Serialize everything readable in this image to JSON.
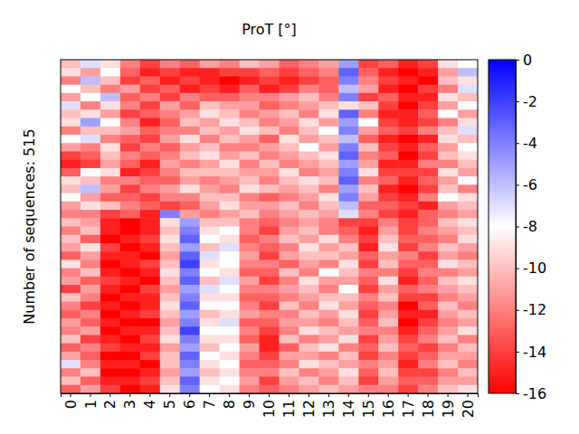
{
  "chart_data": {
    "type": "heatmap",
    "title": "ProT [°]",
    "y_label": "Number of sequences: 515",
    "categories": [
      "0",
      "1",
      "2",
      "3",
      "4",
      "5",
      "6",
      "7",
      "8",
      "9",
      "10",
      "11",
      "12",
      "13",
      "14",
      "15",
      "16",
      "17",
      "18",
      "19",
      "20"
    ],
    "tick_labels": "x",
    "zlim": [
      -16,
      0
    ],
    "zticks": [
      0,
      -2,
      -4,
      -6,
      -8,
      -10,
      -12,
      -14,
      -16
    ],
    "z": [
      [
        -10,
        -7,
        -9,
        -12,
        -14,
        -12,
        -13,
        -11,
        -12,
        -10,
        -11,
        -13,
        -12,
        -11,
        -5,
        -14,
        -13,
        -15,
        -14,
        -9,
        -8
      ],
      [
        -9,
        -11,
        -8,
        -13,
        -15,
        -14,
        -15,
        -15,
        -14,
        -14,
        -13,
        -14,
        -13,
        -12,
        -3,
        -13,
        -15,
        -16,
        -15,
        -11,
        -6
      ],
      [
        -12,
        -6,
        -10,
        -14,
        -13,
        -15,
        -14,
        -15,
        -16,
        -15,
        -14,
        -15,
        -14,
        -13,
        -4,
        -12,
        -14,
        -15,
        -16,
        -10,
        -9
      ],
      [
        -8,
        -10,
        -12,
        -11,
        -14,
        -13,
        -15,
        -14,
        -15,
        -13,
        -15,
        -14,
        -12,
        -13,
        -6,
        -11,
        -15,
        -16,
        -14,
        -12,
        -7
      ],
      [
        -11,
        -8,
        -6,
        -13,
        -12,
        -14,
        -12,
        -13,
        -13,
        -12,
        -12,
        -11,
        -10,
        -12,
        -4,
        -14,
        -13,
        -15,
        -15,
        -9,
        -10
      ],
      [
        -7,
        -12,
        -9,
        -12,
        -14,
        -11,
        -13,
        -10,
        -11,
        -11,
        -13,
        -12,
        -11,
        -10,
        -9,
        -10,
        -14,
        -16,
        -14,
        -11,
        -8
      ],
      [
        -10,
        -9,
        -11,
        -14,
        -13,
        -12,
        -11,
        -9,
        -10,
        -12,
        -11,
        -10,
        -12,
        -9,
        -3,
        -12,
        -15,
        -15,
        -13,
        -8,
        -11
      ],
      [
        -9,
        -5,
        -8,
        -12,
        -15,
        -13,
        -10,
        -11,
        -9,
        -10,
        -12,
        -11,
        -9,
        -11,
        -5,
        -8,
        -14,
        -15,
        -14,
        -12,
        -9
      ],
      [
        -12,
        -10,
        -10,
        -11,
        -13,
        -12,
        -12,
        -10,
        -11,
        -9,
        -10,
        -12,
        -10,
        -8,
        -4,
        -11,
        -13,
        -14,
        -12,
        -10,
        -7
      ],
      [
        -8,
        -7,
        -12,
        -13,
        -14,
        -11,
        -9,
        -12,
        -10,
        -11,
        -13,
        -9,
        -11,
        -10,
        -6,
        -13,
        -15,
        -16,
        -15,
        -9,
        -10
      ],
      [
        -11,
        -12,
        -9,
        -14,
        -12,
        -13,
        -11,
        -10,
        -12,
        -12,
        -11,
        -10,
        -8,
        -11,
        -4,
        -10,
        -14,
        -15,
        -13,
        -11,
        -8
      ],
      [
        -14,
        -13,
        -10,
        -12,
        -13,
        -12,
        -10,
        -9,
        -11,
        -10,
        -12,
        -11,
        -10,
        -9,
        -3,
        -12,
        -13,
        -16,
        -14,
        -10,
        -9
      ],
      [
        -15,
        -14,
        -11,
        -13,
        -15,
        -11,
        -12,
        -11,
        -9,
        -12,
        -10,
        -12,
        -11,
        -10,
        -5,
        -11,
        -15,
        -15,
        -12,
        -12,
        -10
      ],
      [
        -13,
        -8,
        -9,
        -15,
        -14,
        -12,
        -10,
        -10,
        -10,
        -11,
        -11,
        -9,
        -12,
        -11,
        -4,
        -9,
        -14,
        -14,
        -14,
        -9,
        -11
      ],
      [
        -9,
        -10,
        -12,
        -12,
        -13,
        -13,
        -11,
        -12,
        -11,
        -10,
        -12,
        -10,
        -9,
        -10,
        -3,
        -12,
        -13,
        -15,
        -13,
        -11,
        -8
      ],
      [
        -10,
        -6,
        -11,
        -14,
        -12,
        -11,
        -9,
        -11,
        -12,
        -9,
        -10,
        -11,
        -10,
        -12,
        -5,
        -10,
        -15,
        -16,
        -14,
        -10,
        -12
      ],
      [
        -8,
        -11,
        -13,
        -13,
        -14,
        -12,
        -12,
        -10,
        -10,
        -12,
        -13,
        -12,
        -11,
        -9,
        -4,
        -11,
        -14,
        -15,
        -12,
        -8,
        -9
      ],
      [
        -11,
        -9,
        -10,
        -12,
        -13,
        -14,
        -13,
        -11,
        -9,
        -11,
        -11,
        -10,
        -12,
        -10,
        -6,
        -13,
        -13,
        -14,
        -15,
        -11,
        -10
      ],
      [
        -12,
        -12,
        -14,
        -13,
        -15,
        -4,
        -11,
        -12,
        -11,
        -10,
        -12,
        -11,
        -10,
        -11,
        -7,
        -12,
        -14,
        -15,
        -13,
        -12,
        -11
      ],
      [
        -10,
        -11,
        -15,
        -16,
        -15,
        -9,
        -5,
        -10,
        -10,
        -12,
        -13,
        -12,
        -11,
        -12,
        -14,
        -14,
        -12,
        -14,
        -13,
        -10,
        -9
      ],
      [
        -12,
        -10,
        -15,
        -16,
        -15,
        -10,
        -4,
        -9,
        -8,
        -12,
        -14,
        -11,
        -10,
        -12,
        -13,
        -15,
        -11,
        -14,
        -12,
        -11,
        -10
      ],
      [
        -10,
        -13,
        -16,
        -15,
        -14,
        -9,
        -3,
        -8,
        -9,
        -13,
        -12,
        -10,
        -11,
        -9,
        -12,
        -14,
        -10,
        -13,
        -13,
        -12,
        -9
      ],
      [
        -11,
        -9,
        -14,
        -16,
        -15,
        -10,
        -5,
        -10,
        -7,
        -12,
        -13,
        -12,
        -9,
        -11,
        -10,
        -15,
        -9,
        -14,
        -12,
        -10,
        -11
      ],
      [
        -13,
        -11,
        -15,
        -15,
        -16,
        -11,
        -3,
        -7,
        -8,
        -11,
        -14,
        -11,
        -10,
        -10,
        -11,
        -13,
        -11,
        -12,
        -14,
        -11,
        -12
      ],
      [
        -9,
        -12,
        -16,
        -15,
        -14,
        -10,
        -2,
        -9,
        -8,
        -12,
        -12,
        -13,
        -11,
        -12,
        -9,
        -14,
        -10,
        -13,
        -13,
        -9,
        -10
      ],
      [
        -12,
        -10,
        -15,
        -16,
        -15,
        -9,
        -4,
        -8,
        -9,
        -13,
        -13,
        -10,
        -12,
        -8,
        -10,
        -12,
        -12,
        -14,
        -12,
        -12,
        -11
      ],
      [
        -11,
        -13,
        -14,
        -15,
        -16,
        -10,
        -3,
        -10,
        -7,
        -11,
        -14,
        -12,
        -9,
        -11,
        -11,
        -13,
        -9,
        -15,
        -13,
        -10,
        -9
      ],
      [
        -14,
        -11,
        -15,
        -16,
        -14,
        -11,
        -5,
        -7,
        -8,
        -12,
        -12,
        -11,
        -10,
        -12,
        -8,
        -14,
        -11,
        -13,
        -12,
        -11,
        -10
      ],
      [
        -10,
        -12,
        -16,
        -15,
        -15,
        -10,
        -4,
        -9,
        -9,
        -13,
        -13,
        -12,
        -11,
        -10,
        -10,
        -12,
        -10,
        -14,
        -14,
        -12,
        -11
      ],
      [
        -12,
        -14,
        -15,
        -16,
        -15,
        -9,
        -3,
        -8,
        -8,
        -12,
        -14,
        -10,
        -12,
        -9,
        -11,
        -13,
        -12,
        -16,
        -13,
        -10,
        -12
      ],
      [
        -13,
        -12,
        -16,
        -15,
        -14,
        -10,
        -5,
        -10,
        -9,
        -11,
        -12,
        -12,
        -10,
        -11,
        -9,
        -14,
        -11,
        -15,
        -15,
        -11,
        -10
      ],
      [
        -11,
        -13,
        -15,
        -16,
        -16,
        -11,
        -4,
        -9,
        -7,
        -13,
        -13,
        -11,
        -11,
        -12,
        -10,
        -13,
        -10,
        -16,
        -14,
        -12,
        -11
      ],
      [
        -12,
        -11,
        -16,
        -15,
        -15,
        -10,
        -2,
        -8,
        -8,
        -12,
        -14,
        -12,
        -9,
        -10,
        -11,
        -12,
        -12,
        -15,
        -13,
        -11,
        -9
      ],
      [
        -10,
        -14,
        -15,
        -16,
        -14,
        -9,
        -4,
        -9,
        -9,
        -13,
        -15,
        -10,
        -12,
        -11,
        -9,
        -14,
        -11,
        -14,
        -12,
        -10,
        -12
      ],
      [
        -13,
        -12,
        -14,
        -15,
        -15,
        -11,
        -5,
        -10,
        -8,
        -11,
        -15,
        -13,
        -10,
        -9,
        -12,
        -13,
        -10,
        -13,
        -14,
        -12,
        -10
      ],
      [
        -11,
        -13,
        -16,
        -16,
        -14,
        -10,
        -3,
        -8,
        -9,
        -12,
        -14,
        -11,
        -11,
        -12,
        -10,
        -14,
        -12,
        -14,
        -13,
        -11,
        -11
      ],
      [
        -7,
        -12,
        -15,
        -15,
        -16,
        -10,
        -4,
        -9,
        -8,
        -13,
        -13,
        -12,
        -9,
        -10,
        -11,
        -12,
        -11,
        -15,
        -12,
        -10,
        -12
      ],
      [
        -12,
        -10,
        -16,
        -16,
        -15,
        -11,
        -5,
        -10,
        -9,
        -12,
        -12,
        -10,
        -12,
        -11,
        -9,
        -13,
        -10,
        -14,
        -14,
        -12,
        -10
      ],
      [
        -10,
        -13,
        -15,
        -15,
        -14,
        -10,
        -3,
        -9,
        -8,
        -11,
        -14,
        -11,
        -10,
        -12,
        -10,
        -14,
        -11,
        -13,
        -13,
        -11,
        -11
      ],
      [
        -13,
        -11,
        -14,
        -16,
        -15,
        -9,
        -4,
        -8,
        -9,
        -12,
        -13,
        -12,
        -11,
        -10,
        -11,
        -12,
        -12,
        -14,
        -12,
        -10,
        -9
      ]
    ]
  }
}
